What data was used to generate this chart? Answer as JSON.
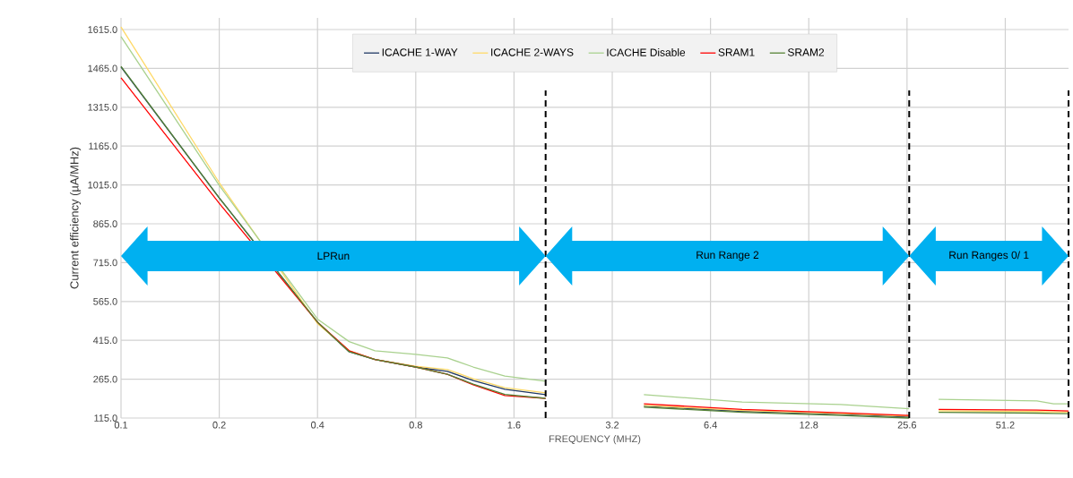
{
  "chart_data": {
    "type": "line",
    "xlabel": "FREQUENCY (MHZ)",
    "ylabel": "Current efficiency (µA/MHz)",
    "log": "x",
    "x": [
      0.1,
      0.2,
      0.4,
      0.5,
      0.6,
      0.8,
      1,
      1.2,
      1.5,
      2,
      3,
      4,
      8,
      16,
      26,
      28,
      32,
      64,
      72,
      80
    ],
    "series": [
      {
        "name": "ICACHE 1-WAY",
        "color": "#1f3864",
        "values": [
          1470,
          965,
          485,
          371,
          341,
          312,
          295,
          260,
          226,
          205,
          null,
          161,
          141,
          129,
          119,
          null,
          null,
          null,
          null,
          null
        ]
      },
      {
        "name": "ICACHE 2-WAYS",
        "color": "#ffd966",
        "values": [
          1625,
          1024,
          480,
          375,
          341,
          315,
          302,
          267,
          232,
          212,
          null,
          164,
          144,
          132,
          122,
          null,
          143,
          140,
          139,
          138
        ]
      },
      {
        "name": "ICACHE Disable",
        "color": "#a9d18e",
        "values": [
          1588,
          1013,
          497,
          410,
          375,
          361,
          347,
          312,
          277,
          257,
          null,
          205,
          177,
          167,
          151,
          null,
          187,
          181,
          170,
          170
        ]
      },
      {
        "name": "SRAM1",
        "color": "#ff0000",
        "values": [
          1429,
          944,
          485,
          375,
          341,
          312,
          284,
          243,
          202,
          191,
          null,
          170,
          148,
          135,
          125,
          null,
          148,
          146,
          144,
          142
        ]
      },
      {
        "name": "SRAM2",
        "color": "#548235",
        "values": [
          1473,
          965,
          485,
          371,
          341,
          312,
          284,
          246,
          206,
          191,
          null,
          157,
          137,
          125,
          115,
          null,
          137,
          134,
          133,
          132
        ]
      }
    ],
    "xlim": [
      0.1,
      80
    ],
    "xticks": [
      0.1,
      0.2,
      0.4,
      0.8,
      1.6,
      3.2,
      6.4,
      12.8,
      25.6,
      51.2
    ],
    "ylim": [
      115,
      1660
    ],
    "yticks": [
      {
        "value": 115,
        "label": "115.0"
      },
      {
        "value": 265,
        "label": "265.0"
      },
      {
        "value": 415,
        "label": "415.0"
      },
      {
        "value": 565,
        "label": "565.0"
      },
      {
        "value": 715,
        "label": "715.0"
      },
      {
        "value": 865,
        "label": "865.0"
      },
      {
        "value": 1015,
        "label": "1015.0"
      },
      {
        "value": 1165,
        "label": "1165.0"
      },
      {
        "value": 1315,
        "label": "1315.0"
      },
      {
        "value": 1465,
        "label": "1465.0"
      },
      {
        "value": 1615,
        "label": "1615.0"
      }
    ],
    "grid": true,
    "legend": "top",
    "marker": "none",
    "line_style": "solid",
    "ref_lines": [
      {
        "axis": "x",
        "value": 2,
        "color": "#000000",
        "line_style": "dashed"
      },
      {
        "axis": "x",
        "value": 26,
        "color": "#000000",
        "line_style": "dashed"
      },
      {
        "axis": "x",
        "value": 80,
        "color": "#000000",
        "line_style": "dashed"
      }
    ],
    "annotations": [
      "LPRun",
      "Run Range 2",
      "Run Ranges 0/ 1"
    ]
  }
}
